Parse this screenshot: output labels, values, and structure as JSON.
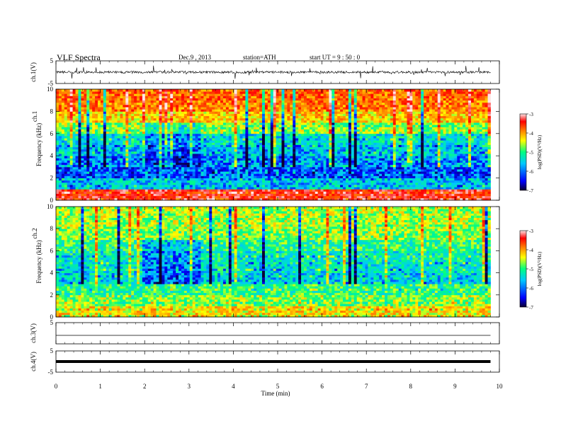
{
  "header": {
    "title": "VLF  Spectra",
    "date": "Dec.9  , 2013",
    "station": "station=ATH",
    "start": "start  UT  =   9 : 50 : 0"
  },
  "colors": {
    "colormap": [
      "#0a0030",
      "#0000ff",
      "#00c8ff",
      "#00ff80",
      "#ffff00",
      "#ff8000",
      "#ff0000",
      "#ffe6e6"
    ],
    "trace": "#000000",
    "axis": "#000000"
  },
  "chart_data": [
    {
      "type": "line",
      "panel": "ch1-waveform",
      "ylabel": "ch.1(V)",
      "ylim": [
        -5,
        5
      ],
      "y_ticks": [
        "5",
        "-5"
      ],
      "xlim": [
        0,
        10
      ],
      "description_of_trace": "noisy waveform fluctuating around 0 V with spikes up to about ±3 V",
      "x": [
        0,
        1,
        2,
        3,
        4,
        5,
        6,
        7,
        8,
        9,
        9.8
      ],
      "y": [
        0,
        0,
        0,
        0,
        0,
        0,
        0,
        0,
        0,
        0,
        0
      ]
    },
    {
      "type": "heatmap",
      "panel": "ch1-spectrogram",
      "ylabel_top": "ch.1",
      "ylabel": "Frequency  (kHz)",
      "ylim": [
        0,
        10
      ],
      "y_ticks": [
        "0",
        "2",
        "4",
        "6",
        "8",
        "10"
      ],
      "xlim": [
        0,
        9.8
      ],
      "colorbar": {
        "label": "log(PSD)(V²/Hz)",
        "range": [
          -7,
          -3
        ],
        "ticks": [
          "-3",
          "-4",
          "-5",
          "-6",
          "-7"
        ]
      },
      "mean_log_psd_by_band_kHz": {
        "0-1": -3.6,
        "1-2": -5.8,
        "2-3": -6.2,
        "3-4": -6.0,
        "4-5": -5.8,
        "5-6": -5.6,
        "6-7": -5.0,
        "7-8": -4.5,
        "8-9": -4.1,
        "9-10": -4.0
      }
    },
    {
      "type": "heatmap",
      "panel": "ch2-spectrogram",
      "ylabel_top": "ch.2",
      "ylabel": "Frequency  (kHz)",
      "ylim": [
        0,
        10
      ],
      "y_ticks": [
        "0",
        "2",
        "4",
        "6",
        "8",
        "10"
      ],
      "xlim": [
        0,
        9.8
      ],
      "colorbar": {
        "label": "log(PSD)(V²/Hz)",
        "range": [
          -7,
          -3
        ],
        "ticks": [
          "-3",
          "-4",
          "-5",
          "-6",
          "-7"
        ]
      },
      "mean_log_psd_by_band_kHz": {
        "0-1": -4.6,
        "1-2": -5.0,
        "2-3": -5.3,
        "3-4": -5.7,
        "4-5": -5.6,
        "5-6": -5.5,
        "6-7": -5.3,
        "7-8": -5.0,
        "8-9": -4.9,
        "9-10": -4.9
      }
    },
    {
      "type": "line",
      "panel": "ch3-waveform",
      "ylabel": "ch.3(V)",
      "ylim": [
        -5,
        5
      ],
      "y_ticks": [
        "5"
      ],
      "xlim": [
        0,
        10
      ],
      "x": [
        0,
        9.8
      ],
      "y": [
        -1,
        -1
      ]
    },
    {
      "type": "line",
      "panel": "ch4-waveform",
      "ylabel": "ch.4(V)",
      "ylim": [
        -5,
        5
      ],
      "y_ticks": [
        "5",
        "-5"
      ],
      "xlim": [
        0,
        10
      ],
      "x": [
        0,
        9.8
      ],
      "y": [
        0,
        0
      ]
    }
  ],
  "xaxis": {
    "label": "Time  (min)",
    "ticks": [
      "0",
      "1",
      "2",
      "3",
      "4",
      "5",
      "6",
      "7",
      "8",
      "9",
      "10"
    ]
  }
}
